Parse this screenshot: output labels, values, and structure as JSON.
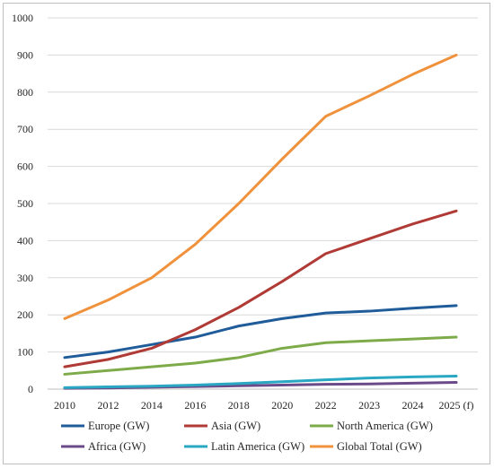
{
  "chart_data": {
    "type": "line",
    "title": "",
    "xlabel": "",
    "ylabel": "",
    "categories": [
      "2010",
      "2012",
      "2014",
      "2016",
      "2018",
      "2020",
      "2022",
      "2023",
      "2024",
      "2025 (f)"
    ],
    "ylim": [
      0,
      1000
    ],
    "yticks": [
      "0",
      "100",
      "200",
      "300",
      "400",
      "500",
      "600",
      "700",
      "800",
      "900",
      "1000"
    ],
    "grid": "horizontal",
    "legend_position": "bottom",
    "series": [
      {
        "name": "Europe (GW)",
        "color": "#1f5c99",
        "values": [
          85,
          100,
          120,
          140,
          170,
          190,
          205,
          210,
          218,
          225
        ]
      },
      {
        "name": "Asia (GW)",
        "color": "#b03a35",
        "values": [
          60,
          80,
          110,
          160,
          220,
          290,
          365,
          405,
          445,
          480
        ]
      },
      {
        "name": "North America (GW)",
        "color": "#7eab4a",
        "values": [
          40,
          50,
          60,
          70,
          85,
          110,
          125,
          130,
          135,
          140
        ]
      },
      {
        "name": "Africa (GW)",
        "color": "#6b4a8a",
        "values": [
          2,
          3,
          5,
          7,
          9,
          11,
          13,
          14,
          16,
          18
        ]
      },
      {
        "name": "Latin America (GW)",
        "color": "#2aa7c2",
        "values": [
          4,
          6,
          8,
          11,
          15,
          20,
          25,
          30,
          33,
          35
        ]
      },
      {
        "name": "Global Total (GW)",
        "color": "#f0913c",
        "values": [
          190,
          240,
          300,
          390,
          500,
          620,
          735,
          790,
          848,
          900
        ]
      }
    ]
  }
}
